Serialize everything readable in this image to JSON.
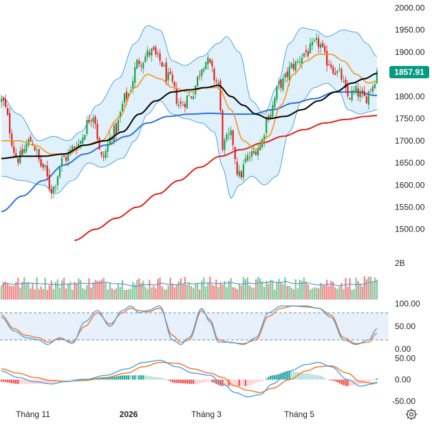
{
  "chart_data": {
    "type": "candlestick",
    "x_labels": [
      "Tháng 11",
      "2026",
      "Tháng 3",
      "Tháng 5"
    ],
    "price_panel": {
      "y_ticks": [
        "2000.00",
        "1950.00",
        "1900.00",
        "1850.00",
        "1800.00",
        "1750.00",
        "1700.00",
        "1650.00",
        "1600.00",
        "1550.00",
        "1500.00"
      ],
      "ylim": [
        1467,
        2010
      ],
      "last_price": "1857.91",
      "last_price_color": "#089981",
      "series": [
        {
          "kind": "bollinger_band",
          "color": "#4aa3df",
          "fill": "#dbeefa"
        },
        {
          "kind": "moving_average",
          "color": "#f7931a"
        },
        {
          "kind": "moving_average",
          "color": "#000000"
        },
        {
          "kind": "moving_average",
          "color": "#2f6fe0"
        },
        {
          "kind": "moving_average",
          "color": "#e0201b"
        }
      ],
      "close_path": [
        [
          0,
          1790
        ],
        [
          8,
          1660
        ],
        [
          14,
          1700
        ],
        [
          20,
          1640
        ],
        [
          24,
          1590
        ],
        [
          30,
          1660
        ],
        [
          36,
          1690
        ],
        [
          44,
          1760
        ],
        [
          48,
          1660
        ],
        [
          54,
          1720
        ],
        [
          60,
          1800
        ],
        [
          66,
          1880
        ],
        [
          72,
          1900
        ],
        [
          76,
          1880
        ],
        [
          80,
          1840
        ],
        [
          86,
          1780
        ],
        [
          90,
          1800
        ],
        [
          98,
          1880
        ],
        [
          104,
          1830
        ],
        [
          106,
          1690
        ],
        [
          110,
          1710
        ],
        [
          114,
          1620
        ],
        [
          118,
          1660
        ],
        [
          124,
          1690
        ],
        [
          128,
          1760
        ],
        [
          134,
          1830
        ],
        [
          140,
          1870
        ],
        [
          146,
          1900
        ],
        [
          152,
          1920
        ],
        [
          156,
          1880
        ],
        [
          162,
          1850
        ],
        [
          166,
          1800
        ],
        [
          170,
          1810
        ],
        [
          174,
          1795
        ],
        [
          178,
          1826
        ],
        [
          180,
          1858
        ]
      ],
      "upper_band": [
        [
          0,
          1800
        ],
        [
          8,
          1760
        ],
        [
          18,
          1700
        ],
        [
          25,
          1710
        ],
        [
          32,
          1700
        ],
        [
          38,
          1720
        ],
        [
          46,
          1780
        ],
        [
          56,
          1840
        ],
        [
          64,
          1920
        ],
        [
          70,
          1960
        ],
        [
          76,
          1950
        ],
        [
          82,
          1880
        ],
        [
          88,
          1870
        ],
        [
          96,
          1890
        ],
        [
          104,
          1920
        ],
        [
          108,
          1935
        ],
        [
          114,
          1900
        ],
        [
          120,
          1790
        ],
        [
          126,
          1760
        ],
        [
          132,
          1820
        ],
        [
          138,
          1920
        ],
        [
          144,
          1955
        ],
        [
          150,
          1950
        ],
        [
          156,
          1935
        ],
        [
          164,
          1950
        ],
        [
          170,
          1945
        ],
        [
          175,
          1920
        ],
        [
          180,
          1890
        ]
      ],
      "lower_band": [
        [
          0,
          1620
        ],
        [
          10,
          1610
        ],
        [
          20,
          1600
        ],
        [
          26,
          1580
        ],
        [
          34,
          1610
        ],
        [
          42,
          1650
        ],
        [
          48,
          1640
        ],
        [
          58,
          1660
        ],
        [
          64,
          1700
        ],
        [
          70,
          1760
        ],
        [
          76,
          1790
        ],
        [
          82,
          1760
        ],
        [
          88,
          1750
        ],
        [
          96,
          1740
        ],
        [
          102,
          1720
        ],
        [
          106,
          1640
        ],
        [
          110,
          1570
        ],
        [
          114,
          1600
        ],
        [
          120,
          1620
        ],
        [
          126,
          1600
        ],
        [
          132,
          1620
        ],
        [
          138,
          1720
        ],
        [
          144,
          1790
        ],
        [
          150,
          1820
        ],
        [
          156,
          1830
        ],
        [
          162,
          1810
        ],
        [
          166,
          1770
        ],
        [
          172,
          1760
        ],
        [
          176,
          1765
        ],
        [
          180,
          1770
        ]
      ],
      "ma_orange": [
        [
          0,
          1700
        ],
        [
          8,
          1700
        ],
        [
          16,
          1690
        ],
        [
          24,
          1670
        ],
        [
          32,
          1670
        ],
        [
          40,
          1690
        ],
        [
          48,
          1700
        ],
        [
          56,
          1750
        ],
        [
          64,
          1820
        ],
        [
          70,
          1850
        ],
        [
          76,
          1840
        ],
        [
          82,
          1820
        ],
        [
          90,
          1810
        ],
        [
          98,
          1820
        ],
        [
          104,
          1820
        ],
        [
          110,
          1770
        ],
        [
          116,
          1700
        ],
        [
          122,
          1680
        ],
        [
          128,
          1710
        ],
        [
          134,
          1780
        ],
        [
          140,
          1850
        ],
        [
          146,
          1880
        ],
        [
          152,
          1895
        ],
        [
          158,
          1895
        ],
        [
          164,
          1880
        ],
        [
          170,
          1850
        ],
        [
          176,
          1830
        ],
        [
          180,
          1835
        ]
      ],
      "ma_black": [
        [
          0,
          1660
        ],
        [
          10,
          1665
        ],
        [
          20,
          1665
        ],
        [
          30,
          1670
        ],
        [
          40,
          1690
        ],
        [
          50,
          1700
        ],
        [
          58,
          1720
        ],
        [
          66,
          1760
        ],
        [
          74,
          1790
        ],
        [
          82,
          1810
        ],
        [
          90,
          1815
        ],
        [
          98,
          1820
        ],
        [
          104,
          1825
        ],
        [
          110,
          1800
        ],
        [
          116,
          1780
        ],
        [
          122,
          1760
        ],
        [
          128,
          1750
        ],
        [
          136,
          1755
        ],
        [
          144,
          1770
        ],
        [
          152,
          1790
        ],
        [
          160,
          1810
        ],
        [
          168,
          1830
        ],
        [
          174,
          1840
        ],
        [
          180,
          1852
        ]
      ],
      "ma_blue": [
        [
          0,
          1540
        ],
        [
          10,
          1575
        ],
        [
          20,
          1610
        ],
        [
          30,
          1645
        ],
        [
          40,
          1670
        ],
        [
          50,
          1690
        ],
        [
          60,
          1710
        ],
        [
          70,
          1740
        ],
        [
          80,
          1755
        ],
        [
          90,
          1760
        ],
        [
          100,
          1762
        ],
        [
          110,
          1760
        ],
        [
          120,
          1760
        ],
        [
          130,
          1770
        ],
        [
          140,
          1785
        ],
        [
          150,
          1795
        ],
        [
          160,
          1810
        ],
        [
          170,
          1810
        ],
        [
          180,
          1802
        ]
      ],
      "ma_red": [
        [
          35,
          1475
        ],
        [
          45,
          1500
        ],
        [
          55,
          1525
        ],
        [
          65,
          1550
        ],
        [
          75,
          1580
        ],
        [
          85,
          1610
        ],
        [
          95,
          1640
        ],
        [
          105,
          1665
        ],
        [
          115,
          1680
        ],
        [
          125,
          1695
        ],
        [
          135,
          1710
        ],
        [
          145,
          1725
        ],
        [
          155,
          1740
        ],
        [
          165,
          1748
        ],
        [
          175,
          1755
        ],
        [
          180,
          1757
        ]
      ]
    },
    "volume_panel": {
      "y_ticks": [
        "2B"
      ],
      "up_color": "#8cc9a2",
      "down_color": "#ec8f8c",
      "volume_ma_color": "#5a9bd6"
    },
    "stochastic_panel": {
      "y_ticks": [
        "100.00",
        "50.00",
        "0.00"
      ],
      "ylim": [
        0,
        100
      ],
      "levels": [
        80,
        20
      ],
      "k_color": "#4aa3df",
      "d_color": "#f37021",
      "k": [
        [
          0,
          70
        ],
        [
          6,
          40
        ],
        [
          12,
          25
        ],
        [
          18,
          20
        ],
        [
          22,
          10
        ],
        [
          28,
          25
        ],
        [
          34,
          12
        ],
        [
          40,
          60
        ],
        [
          46,
          85
        ],
        [
          52,
          50
        ],
        [
          58,
          85
        ],
        [
          62,
          95
        ],
        [
          66,
          80
        ],
        [
          70,
          85
        ],
        [
          76,
          95
        ],
        [
          82,
          20
        ],
        [
          86,
          10
        ],
        [
          90,
          25
        ],
        [
          96,
          90
        ],
        [
          100,
          60
        ],
        [
          104,
          15
        ],
        [
          110,
          15
        ],
        [
          116,
          10
        ],
        [
          122,
          25
        ],
        [
          128,
          80
        ],
        [
          134,
          95
        ],
        [
          140,
          95
        ],
        [
          146,
          95
        ],
        [
          152,
          90
        ],
        [
          158,
          70
        ],
        [
          164,
          20
        ],
        [
          170,
          10
        ],
        [
          176,
          20
        ],
        [
          180,
          45
        ]
      ],
      "d": [
        [
          0,
          75
        ],
        [
          6,
          45
        ],
        [
          12,
          30
        ],
        [
          18,
          25
        ],
        [
          22,
          15
        ],
        [
          28,
          22
        ],
        [
          34,
          16
        ],
        [
          40,
          50
        ],
        [
          46,
          80
        ],
        [
          52,
          55
        ],
        [
          58,
          80
        ],
        [
          62,
          90
        ],
        [
          66,
          85
        ],
        [
          70,
          82
        ],
        [
          76,
          90
        ],
        [
          82,
          30
        ],
        [
          86,
          15
        ],
        [
          90,
          20
        ],
        [
          96,
          85
        ],
        [
          100,
          65
        ],
        [
          104,
          20
        ],
        [
          110,
          14
        ],
        [
          116,
          12
        ],
        [
          122,
          20
        ],
        [
          128,
          72
        ],
        [
          134,
          90
        ],
        [
          140,
          95
        ],
        [
          146,
          93
        ],
        [
          152,
          90
        ],
        [
          158,
          75
        ],
        [
          164,
          25
        ],
        [
          170,
          12
        ],
        [
          176,
          15
        ],
        [
          180,
          35
        ]
      ]
    },
    "macd_panel": {
      "y_ticks": [
        "50.00",
        "0.00",
        "-50.00"
      ],
      "ylim": [
        -60,
        60
      ],
      "macd_color": "#4aa3df",
      "signal_color": "#f37021",
      "hist_up_color": "#26a69a",
      "hist_up_light_color": "#b2dfdb",
      "hist_down_color": "#ef5350",
      "hist_down_light_color": "#ffcdd2",
      "macd": [
        [
          0,
          20
        ],
        [
          8,
          5
        ],
        [
          16,
          -5
        ],
        [
          24,
          -10
        ],
        [
          30,
          -5
        ],
        [
          40,
          0
        ],
        [
          50,
          10
        ],
        [
          60,
          25
        ],
        [
          68,
          40
        ],
        [
          76,
          45
        ],
        [
          84,
          30
        ],
        [
          92,
          15
        ],
        [
          100,
          10
        ],
        [
          106,
          -10
        ],
        [
          112,
          -30
        ],
        [
          118,
          -40
        ],
        [
          124,
          -35
        ],
        [
          130,
          -10
        ],
        [
          138,
          20
        ],
        [
          146,
          35
        ],
        [
          152,
          40
        ],
        [
          158,
          30
        ],
        [
          166,
          0
        ],
        [
          172,
          -15
        ],
        [
          178,
          -10
        ],
        [
          180,
          -5
        ]
      ],
      "signal": [
        [
          0,
          25
        ],
        [
          8,
          15
        ],
        [
          16,
          5
        ],
        [
          24,
          -2
        ],
        [
          30,
          -4
        ],
        [
          40,
          -2
        ],
        [
          50,
          5
        ],
        [
          60,
          15
        ],
        [
          68,
          30
        ],
        [
          76,
          40
        ],
        [
          84,
          38
        ],
        [
          92,
          25
        ],
        [
          100,
          15
        ],
        [
          106,
          5
        ],
        [
          112,
          -15
        ],
        [
          118,
          -25
        ],
        [
          124,
          -30
        ],
        [
          130,
          -20
        ],
        [
          138,
          0
        ],
        [
          146,
          20
        ],
        [
          152,
          30
        ],
        [
          158,
          32
        ],
        [
          166,
          15
        ],
        [
          172,
          -5
        ],
        [
          178,
          -8
        ],
        [
          180,
          -8
        ]
      ]
    }
  }
}
